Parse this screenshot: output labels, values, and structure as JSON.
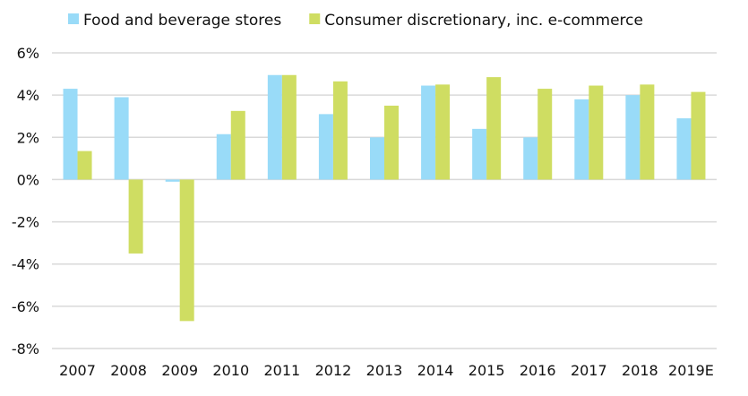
{
  "chart_data": {
    "type": "bar",
    "categories": [
      "2007",
      "2008",
      "2009",
      "2010",
      "2011",
      "2012",
      "2013",
      "2014",
      "2015",
      "2016",
      "2017",
      "2018",
      "2019E"
    ],
    "series": [
      {
        "name": "Food and beverage stores",
        "color": "#99dbf8",
        "values": [
          4.3,
          3.9,
          -0.1,
          2.15,
          4.95,
          3.1,
          2.0,
          4.45,
          2.4,
          2.0,
          3.8,
          4.0,
          2.9
        ]
      },
      {
        "name": "Consumer discretionary, inc. e-commerce",
        "color": "#cfdd62",
        "values": [
          1.35,
          -3.5,
          -6.7,
          3.25,
          4.95,
          4.65,
          3.5,
          4.5,
          4.85,
          4.3,
          4.45,
          4.5,
          4.15
        ]
      }
    ],
    "yticks": [
      "6%",
      "4%",
      "2%",
      "0%",
      "-2%",
      "-4%",
      "-6%",
      "-8%"
    ],
    "ytick_values": [
      6,
      4,
      2,
      0,
      -2,
      -4,
      -6,
      -8
    ],
    "ylim": [
      -8,
      6
    ],
    "grid": true,
    "legend": "top",
    "gridColor": "#d9d9d9"
  }
}
